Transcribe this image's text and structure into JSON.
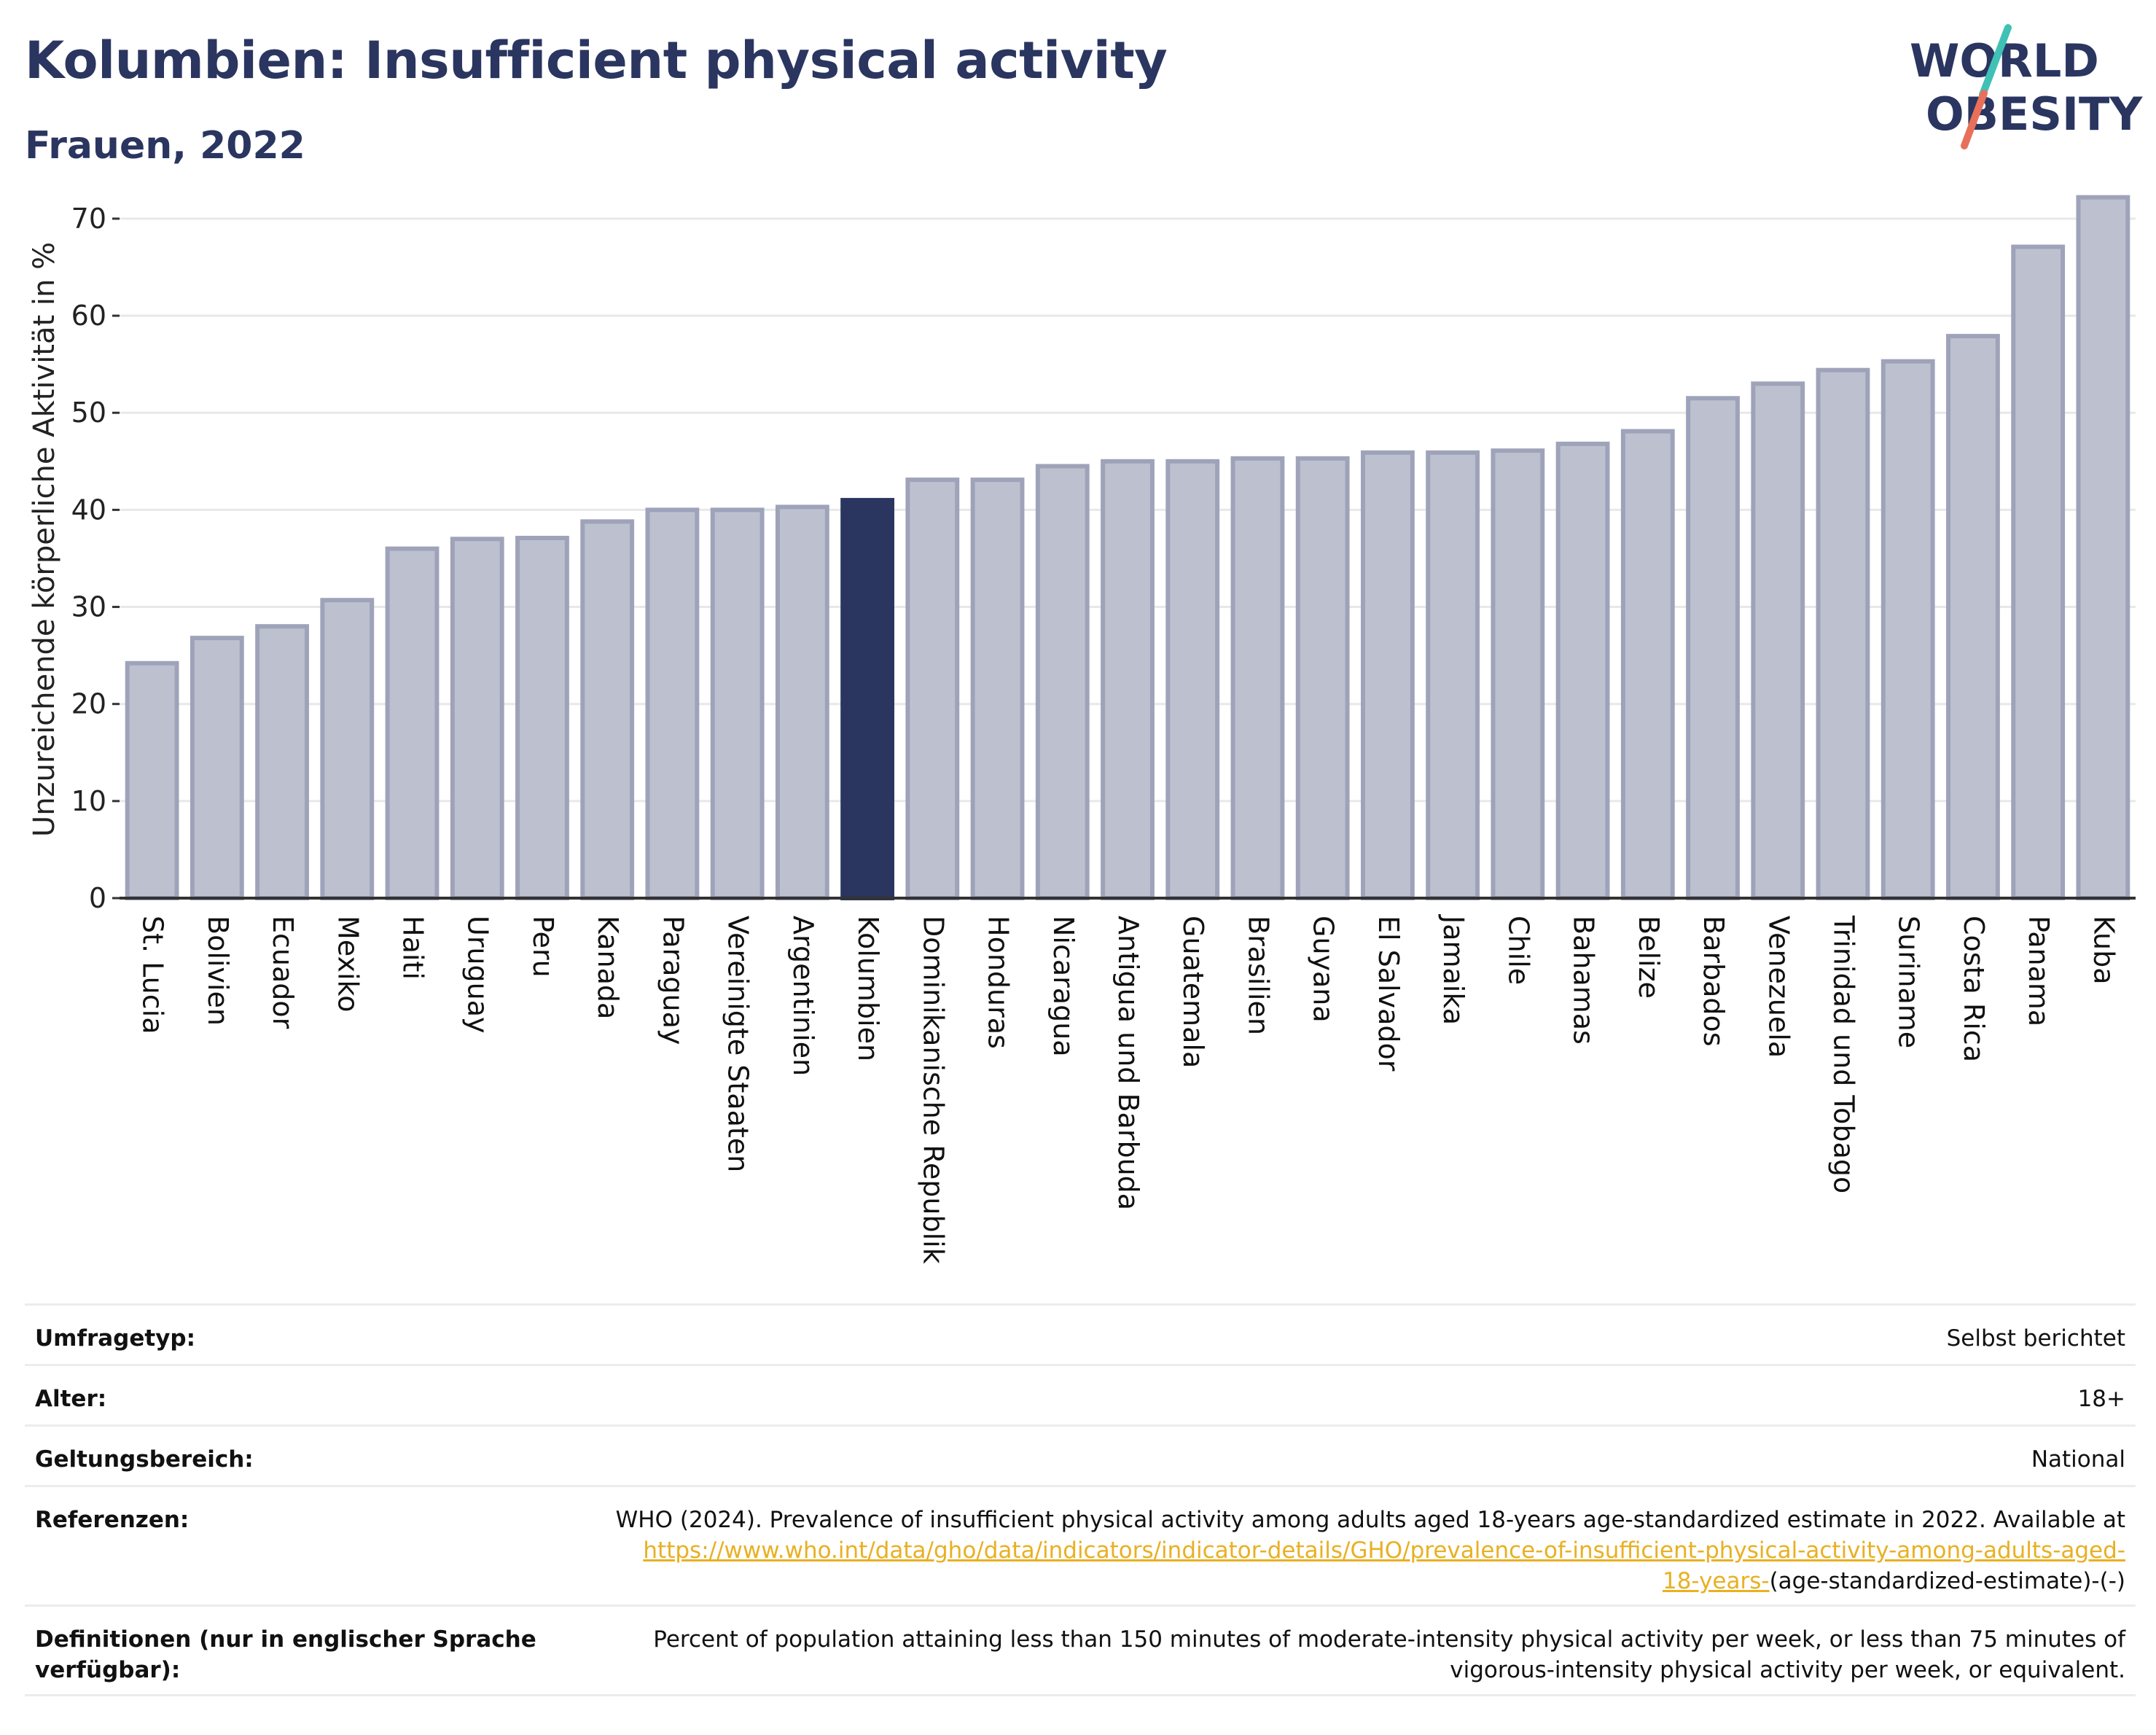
{
  "header": {
    "title": "Kolumbien: Insufficient physical activity",
    "subtitle": "Frauen, 2022"
  },
  "logo": {
    "line1": "WORLD",
    "line2": "OBESITY",
    "colors": {
      "text": "#2a3560",
      "slash_top": "#3fc1b5",
      "slash_bottom": "#e8705b"
    }
  },
  "chart_data": {
    "type": "bar",
    "title": "",
    "xlabel": "",
    "ylabel": "Unzureichende körperliche Aktivität in %",
    "ylim": [
      0,
      73
    ],
    "yticks": [
      0,
      10,
      20,
      30,
      40,
      50,
      60,
      70
    ],
    "grid": true,
    "highlight": "Kolumbien",
    "colors": {
      "bar": "#bdc0ce",
      "bar_border": "#9ea3ba",
      "highlight": "#2a3560",
      "axis": "#333333",
      "grid": "#e8e8e8"
    },
    "categories": [
      "St. Lucia",
      "Bolivien",
      "Ecuador",
      "Mexiko",
      "Haiti",
      "Uruguay",
      "Peru",
      "Kanada",
      "Paraguay",
      "Vereinigte Staaten",
      "Argentinien",
      "Kolumbien",
      "Dominikanische Republik",
      "Honduras",
      "Nicaragua",
      "Antigua und Barbuda",
      "Guatemala",
      "Brasilien",
      "Guyana",
      "El Salvador",
      "Jamaika",
      "Chile",
      "Bahamas",
      "Belize",
      "Barbados",
      "Venezuela",
      "Trinidad und Tobago",
      "Suriname",
      "Costa Rica",
      "Panama",
      "Kuba"
    ],
    "values": [
      24.2,
      26.8,
      28.0,
      30.7,
      36.0,
      37.0,
      37.1,
      38.8,
      40.0,
      40.0,
      40.3,
      41.0,
      43.1,
      43.1,
      44.5,
      45.0,
      45.0,
      45.3,
      45.3,
      45.9,
      45.9,
      46.1,
      46.8,
      48.1,
      51.5,
      53.0,
      54.4,
      55.3,
      57.9,
      67.1,
      72.2
    ]
  },
  "info": {
    "survey_type_label": "Umfragetyp:",
    "survey_type_value": "Selbst berichtet",
    "age_label": "Alter:",
    "age_value": "18+",
    "scope_label": "Geltungsbereich:",
    "scope_value": "National",
    "references_label": "Referenzen:",
    "references_text": "WHO (2024). Prevalence of insufficient physical activity among adults aged 18-years age-standardized estimate in 2022. Available at",
    "references_link_line1": "https://www.who.int/data/gho/data/indicators/indicator-details/GHO/prevalence-of-insufficient-physical-activity-among-adults-aged-",
    "references_link_line2": "18-years-",
    "references_suffix": "(age-standardized-estimate)-(-)",
    "definitions_label": "Definitionen (nur in englischer Sprache verfügbar):",
    "definitions_text": "Percent of population attaining less than 150 minutes of moderate-intensity physical activity per week, or less than 75 minutes of vigorous-intensity physical activity per week, or equivalent."
  }
}
